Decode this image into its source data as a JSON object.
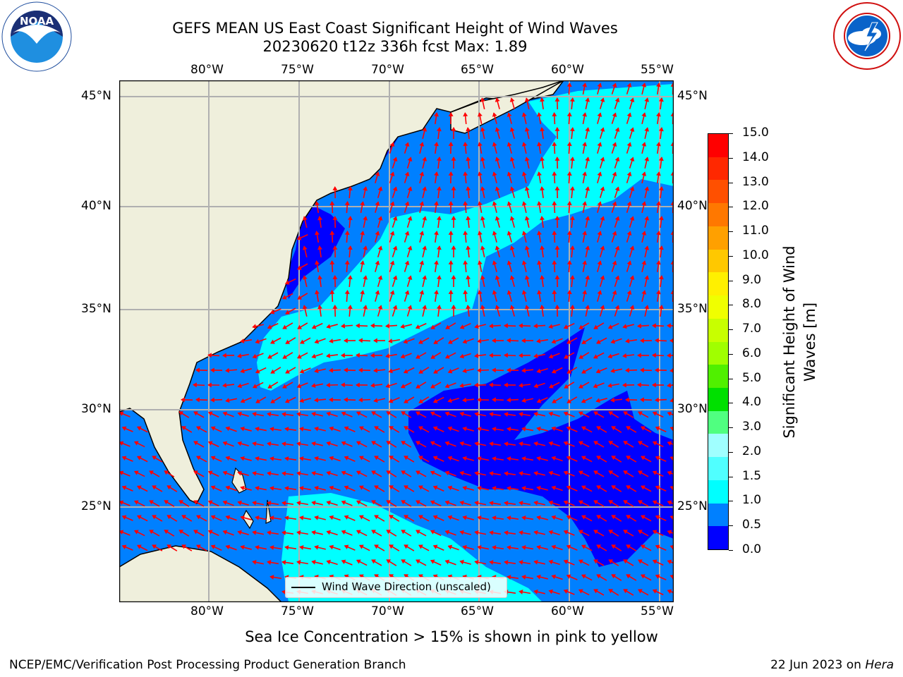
{
  "header": {
    "title_line1": "GEFS MEAN US East Coast Significant Height of Wind Waves",
    "title_line2": "20230620 t12z 336h fcst   Max: 1.89"
  },
  "logos": {
    "noaa": {
      "text": "NOAA",
      "ring_text": "NATIONAL OCEANIC AND ATMOSPHERIC ADMINISTRATION · U.S. DEPARTMENT OF COMMERCE"
    },
    "nws": {
      "ring_text": "NATIONAL WEATHER SERVICE"
    }
  },
  "map": {
    "lon_labels": [
      "80°W",
      "75°W",
      "70°W",
      "65°W",
      "60°W",
      "55°W"
    ],
    "lat_labels": [
      "45°N",
      "40°N",
      "35°N",
      "30°N",
      "25°N"
    ],
    "legend_label": "Wind Wave Direction (unscaled)",
    "colors": {
      "land": "#efefdc",
      "ocean_light": "#00ffff",
      "ocean_mid": "#0080ff",
      "ocean_dark": "#0000ff",
      "arrow": "#ff0000",
      "grid": "#b0b0b0"
    }
  },
  "colorbar": {
    "label_line1": "Significant Height of Wind",
    "label_line2": "Waves [m]",
    "ticks": [
      "15.0",
      "14.0",
      "13.0",
      "12.0",
      "11.0",
      "10.0",
      "9.0",
      "8.0",
      "7.0",
      "6.0",
      "5.0",
      "4.0",
      "3.0",
      "2.0",
      "1.5",
      "1.0",
      "0.5",
      "0.0"
    ],
    "colors_top_down": [
      "#ff0000",
      "#ff2800",
      "#ff5000",
      "#ff7800",
      "#ffa000",
      "#ffc800",
      "#fff000",
      "#f0ff00",
      "#c8ff00",
      "#a0ff00",
      "#50f000",
      "#00e000",
      "#50ff80",
      "#a0ffff",
      "#50ffff",
      "#00ffff",
      "#0080ff",
      "#0000ff"
    ]
  },
  "notes": {
    "sea_ice": "Sea Ice Concentration > 15% is shown in pink to yellow"
  },
  "footer": {
    "left": "NCEP/EMC/Verification Post Processing Product Generation Branch",
    "right_prefix": "22 Jun 2023 on ",
    "right_host": "Hera"
  }
}
